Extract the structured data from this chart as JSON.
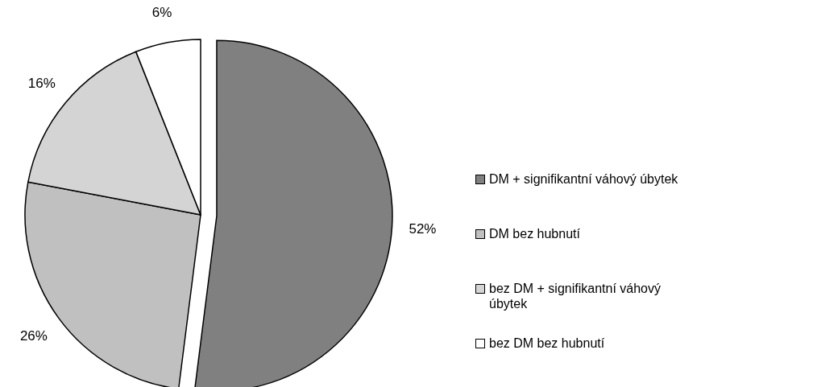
{
  "chart_data": {
    "type": "pie",
    "categories": [
      "DM + signifikantní váhový úbytek",
      "DM bez hubnutí",
      "bez DM + signifikantní váhový úbytek",
      "bez DM bez hubnutí"
    ],
    "values": [
      52,
      26,
      16,
      6
    ],
    "value_labels": [
      "52%",
      "26%",
      "16%",
      "6%"
    ],
    "colors": [
      "#808080",
      "#c0c0c0",
      "#d4d4d4",
      "#ffffff"
    ],
    "legend": "right"
  }
}
